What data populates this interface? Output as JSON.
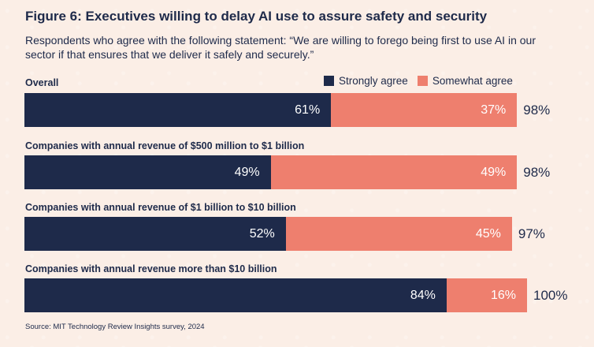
{
  "header": {
    "title": "Figure 6: Executives willing to delay AI use to assure safety and security",
    "subtitle": "Respondents who agree with the following statement: “We are willing to forego being first to use AI in our sector if that ensures that we deliver it safely and securely.”"
  },
  "legend": {
    "strongly": "Strongly agree",
    "somewhat": "Somewhat agree"
  },
  "colors": {
    "strongly": "#1e2a4a",
    "somewhat": "#ee7f6e"
  },
  "source": "Source: MIT Technology Review Insights survey, 2024",
  "chart_data": {
    "type": "bar",
    "orientation": "horizontal",
    "stacked": true,
    "title": "Figure 6: Executives willing to delay AI use to assure safety and security",
    "categories": [
      "Overall",
      "Companies with annual revenue of $500 million to $1 billion",
      "Companies with annual revenue of $1 billion to $10 billion",
      "Companies with annual revenue more than $10 billion"
    ],
    "series": [
      {
        "name": "Strongly agree",
        "values": [
          61,
          49,
          52,
          84
        ],
        "labels": [
          "61%",
          "49%",
          "52%",
          "84%"
        ]
      },
      {
        "name": "Somewhat agree",
        "values": [
          37,
          49,
          45,
          16
        ],
        "labels": [
          "37%",
          "49%",
          "45%",
          "16%"
        ]
      }
    ],
    "totals": [
      98,
      98,
      97,
      100
    ],
    "total_labels": [
      "98%",
      "98%",
      "97%",
      "100%"
    ],
    "xlim": [
      0,
      100
    ],
    "legend_position": "top-right"
  }
}
